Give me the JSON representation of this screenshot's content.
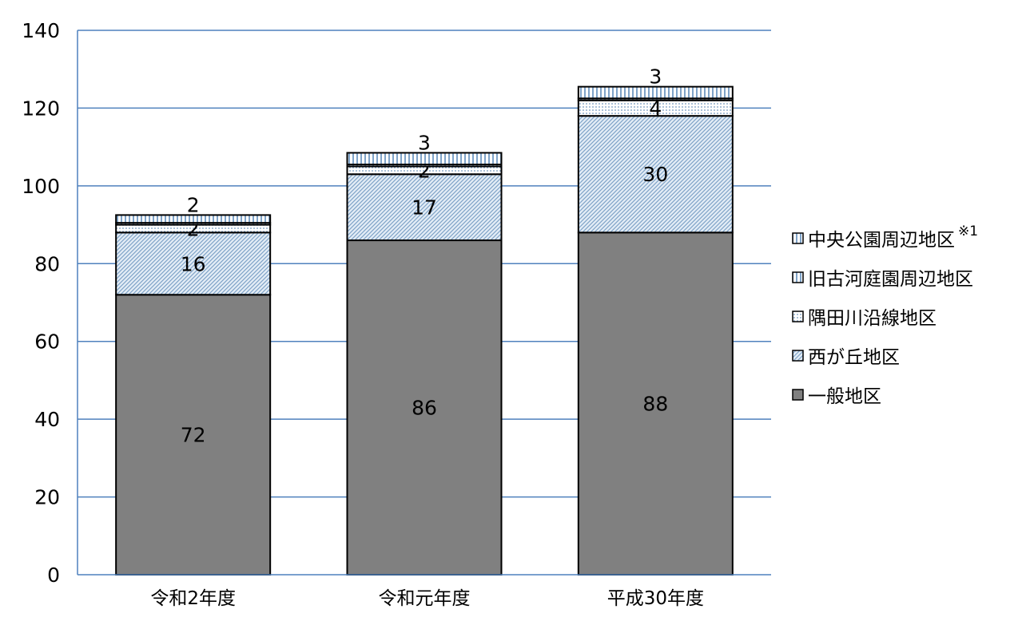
{
  "chart_data": {
    "type": "bar",
    "stacked": true,
    "title": "",
    "xlabel": "",
    "ylabel": "",
    "ylim": [
      0,
      140
    ],
    "yticks": [
      0,
      20,
      40,
      60,
      80,
      100,
      120,
      140
    ],
    "grid": true,
    "legend_position": "right",
    "categories": [
      "令和2年度",
      "令和元年度",
      "平成30年度"
    ],
    "series": [
      {
        "name": "一般地区",
        "values": [
          72,
          86,
          88
        ],
        "color": "#808080",
        "pattern": "solid"
      },
      {
        "name": "西が丘地区",
        "values": [
          16,
          17,
          30
        ],
        "color": "#a9c6df",
        "pattern": "diagonal-hatch"
      },
      {
        "name": "隅田川沿線地区",
        "values": [
          2,
          2,
          4
        ],
        "color": "#a9c6df",
        "pattern": "dotted"
      },
      {
        "name": "旧古河庭園周辺地区",
        "values": [
          0.5,
          0.5,
          0.5
        ],
        "color": "#8fb1d4",
        "pattern": "vertical-lines"
      },
      {
        "name": "中央公園周辺地区",
        "values": [
          2,
          3,
          3
        ],
        "color": "#8fb1d4",
        "pattern": "vertical-lines"
      }
    ],
    "data_labels": [
      {
        "category": "令和2年度",
        "values": [
          "72",
          "16",
          "2",
          "",
          "2"
        ]
      },
      {
        "category": "令和元年度",
        "values": [
          "86",
          "17",
          "2",
          "",
          "3"
        ]
      },
      {
        "category": "平成30年度",
        "values": [
          "88",
          "30",
          "4",
          "",
          "3"
        ]
      }
    ],
    "legend_order": [
      "中央公園周辺地区",
      "旧古河庭園周辺地区",
      "隅田川沿線地区",
      "西が丘地区",
      "一般地区"
    ],
    "legend_note": "※1"
  }
}
